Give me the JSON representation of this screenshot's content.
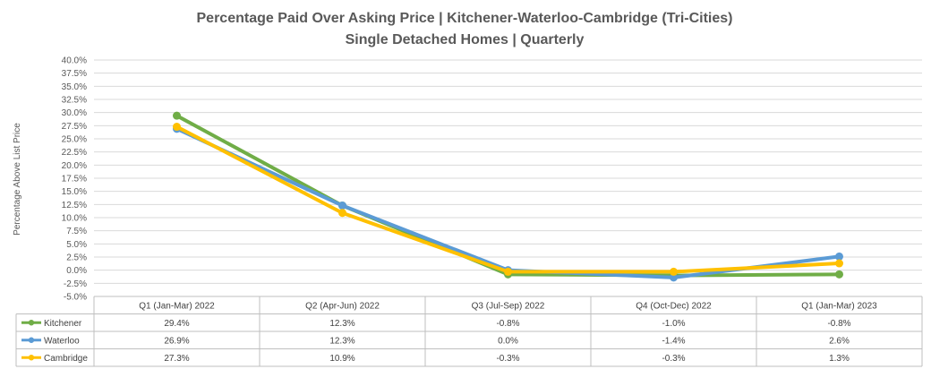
{
  "chart_data": {
    "type": "line",
    "title": "Percentage Paid Over Asking Price | Kitchener-Waterloo-Cambridge (Tri-Cities)",
    "subtitle": "Single Detached Homes | Quarterly",
    "ylabel": "Percentage Above List Price",
    "xlabel": "",
    "ylim": [
      -5.0,
      40.0
    ],
    "ytick_step": 2.5,
    "yticks": [
      "40.0%",
      "37.5%",
      "35.0%",
      "32.5%",
      "30.0%",
      "27.5%",
      "25.0%",
      "22.5%",
      "20.0%",
      "17.5%",
      "15.0%",
      "12.5%",
      "10.0%",
      "7.5%",
      "5.0%",
      "2.5%",
      "0.0%",
      "-2.5%",
      "-5.0%"
    ],
    "grid": true,
    "categories": [
      "Q1 (Jan-Mar) 2022",
      "Q2 (Apr-Jun) 2022",
      "Q3 (Jul-Sep) 2022",
      "Q4 (Oct-Dec) 2022",
      "Q1 (Jan-Mar) 2023"
    ],
    "series": [
      {
        "name": "Kitchener",
        "color": "#70ad47",
        "values": [
          29.4,
          12.3,
          -0.8,
          -1.0,
          -0.8
        ],
        "labels": [
          "29.4%",
          "12.3%",
          "-0.8%",
          "-1.0%",
          "-0.8%"
        ]
      },
      {
        "name": "Waterloo",
        "color": "#5b9bd5",
        "values": [
          26.9,
          12.3,
          0.0,
          -1.4,
          2.6
        ],
        "labels": [
          "26.9%",
          "12.3%",
          "0.0%",
          "-1.4%",
          "2.6%"
        ]
      },
      {
        "name": "Cambridge",
        "color": "#ffc000",
        "values": [
          27.3,
          10.9,
          -0.3,
          -0.3,
          1.3
        ],
        "labels": [
          "27.3%",
          "10.9%",
          "-0.3%",
          "-0.3%",
          "1.3%"
        ]
      }
    ]
  }
}
